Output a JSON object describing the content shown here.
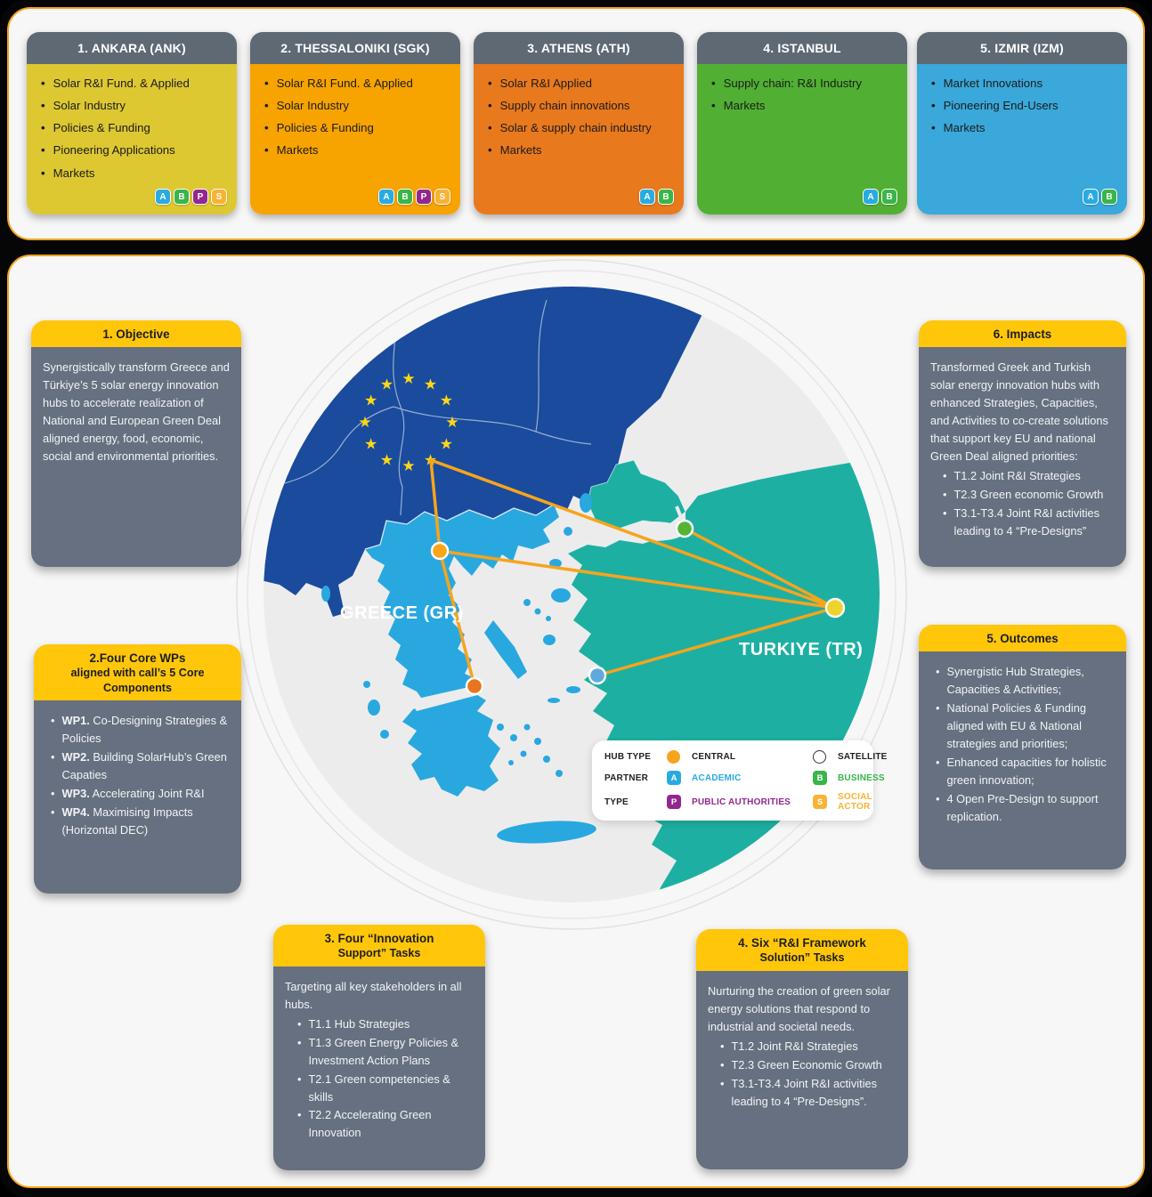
{
  "top_cards": [
    {
      "title": "1. ANKARA (ANK)",
      "color": "#ddc832",
      "items": [
        "Solar R&I Fund. & Applied",
        "Solar Industry",
        "Policies & Funding",
        "Pioneering Applications",
        "Markets"
      ],
      "badges": [
        "A",
        "B",
        "P",
        "S"
      ]
    },
    {
      "title": "2. THESSALONIKI (SGK)",
      "color": "#f7a300",
      "items": [
        "Solar R&I Fund. & Applied",
        "Solar Industry",
        "Policies & Funding",
        "Markets"
      ],
      "badges": [
        "A",
        "B",
        "P",
        "S"
      ]
    },
    {
      "title": "3. ATHENS (ATH)",
      "color": "#e8791d",
      "items": [
        "Solar R&I Applied",
        "Supply chain innovations",
        "Solar & supply chain industry",
        "Markets"
      ],
      "badges": [
        "A",
        "B"
      ]
    },
    {
      "title": "4. ISTANBUL",
      "color": "#51b033",
      "items": [
        "Supply chain: R&I Industry",
        "Markets"
      ],
      "badges": [
        "A",
        "B"
      ]
    },
    {
      "title": "5. IZMIR (IZM)",
      "color": "#3aa8da",
      "items": [
        "Market Innovations",
        "Pioneering End-Users",
        "Markets"
      ],
      "badges": [
        "A",
        "B"
      ]
    }
  ],
  "badge_colors": {
    "A": "#29abe2",
    "B": "#39b54a",
    "P": "#92278f",
    "S": "#f9b233"
  },
  "boxes": [
    {
      "id": "objective",
      "header": [
        "1. Objective"
      ],
      "paragraph": "Synergistically transform Greece and Türkiye’s 5 solar energy innovation hubs to accelerate realization of National and European Green Deal aligned energy, food, economic, social and environmental priorities.",
      "bullets": []
    },
    {
      "id": "core-wps",
      "header": [
        "2.Four Core WPs",
        "aligned with call’s 5 Core Components"
      ],
      "paragraph": "",
      "bullets": [
        {
          "bold": "WP1.",
          "text": " Co-Designing Strategies & Policies"
        },
        {
          "bold": "WP2.",
          "text": " Building SolarHub’s Green Capaties"
        },
        {
          "bold": "WP3.",
          "text": " Accelerating Joint R&I"
        },
        {
          "bold": "WP4.",
          "text": " Maximising Impacts (Horizontal DEC)"
        }
      ]
    },
    {
      "id": "innovation-support",
      "header": [
        "3. Four “Innovation",
        "Support” Tasks"
      ],
      "paragraph": "Targeting all key stakeholders in all hubs.",
      "bullets": [
        {
          "text": "T1.1 Hub Strategies"
        },
        {
          "text": "T1.3 Green Energy Policies & Investment Action Plans"
        },
        {
          "text": "T2.1 Green competencies & skills"
        },
        {
          "text": "T2.2 Accelerating Green Innovation"
        }
      ]
    },
    {
      "id": "framework-solution",
      "header": [
        "4. Six “R&I Framework",
        "Solution” Tasks"
      ],
      "paragraph": "Nurturing the creation of green solar energy solutions that respond to industrial and societal needs.",
      "bullets": [
        {
          "text": "T1.2 Joint R&I Strategies"
        },
        {
          "text": "T2.3 Green Economic Growth"
        },
        {
          "text": "T3.1-T3.4 Joint R&I activities leading to 4 “Pre-Designs”."
        }
      ]
    },
    {
      "id": "outcomes",
      "header": [
        "5. Outcomes"
      ],
      "paragraph": "",
      "bullets": [
        {
          "text": "Synergistic Hub Strategies, Capacities & Activities;"
        },
        {
          "text": "National Policies & Funding aligned with EU & National strategies and priorities;"
        },
        {
          "text": "Enhanced capacities for holistic green innovation;"
        },
        {
          "text": "4 Open Pre-Design to support replication."
        }
      ]
    },
    {
      "id": "impacts",
      "header": [
        "6. Impacts"
      ],
      "paragraph": "Transformed Greek and Turkish solar energy innovation hubs with enhanced Strategies, Capacities, and Activities to co-create solutions that support key EU and national Green Deal aligned priorities:",
      "bullets": [
        {
          "text": "T1.2 Joint R&I Strategies"
        },
        {
          "text": "T2.3 Green economic Growth"
        },
        {
          "text": "T3.1-T3.4 Joint R&I activities leading to 4 “Pre-Designs”"
        }
      ]
    }
  ],
  "map": {
    "labels": {
      "greece": "GREECE (GR)",
      "turkiye": "TURKIYE (TR)"
    },
    "region_colors": {
      "eu": "#1a4b9d",
      "greece": "#29a8e0",
      "turkiye": "#1db0a2",
      "sea": "#ececec",
      "stars": "#ffd617",
      "link": "#f7a41d"
    },
    "hubs": [
      {
        "id": "eu",
        "name": "EU",
        "type": "star-vertex",
        "color": "#ffd617"
      },
      {
        "id": "thessaloniki",
        "name": "Thessaloniki",
        "type": "central",
        "color": "#f9a51a"
      },
      {
        "id": "athens",
        "name": "Athens",
        "type": "central",
        "color": "#e8761c"
      },
      {
        "id": "istanbul",
        "name": "Istanbul",
        "type": "satellite",
        "color": "#54b335"
      },
      {
        "id": "izmir",
        "name": "Izmir",
        "type": "satellite",
        "color": "#5fa9dd"
      },
      {
        "id": "ankara",
        "name": "Ankara",
        "type": "central",
        "color": "#ecd42c"
      }
    ],
    "connections": [
      [
        "eu",
        "thessaloniki"
      ],
      [
        "eu",
        "ankara"
      ],
      [
        "thessaloniki",
        "ankara"
      ],
      [
        "thessaloniki",
        "athens"
      ],
      [
        "istanbul",
        "ankara"
      ],
      [
        "izmir",
        "ankara"
      ]
    ],
    "legend": {
      "rows": [
        {
          "label": "HUB TYPE",
          "items": [
            {
              "icon": "circle-filled",
              "text": "CENTRAL",
              "color": "#222222"
            },
            {
              "icon": "circle-hollow",
              "text": "SATELLITE",
              "color": "#222222"
            }
          ]
        },
        {
          "label": "PARTNER",
          "items": [
            {
              "icon": "badge",
              "letter": "A",
              "badge_color": "#29abe2",
              "text": "ACADEMIC",
              "color": "#29abe2"
            },
            {
              "icon": "badge",
              "letter": "B",
              "badge_color": "#39b54a",
              "text": "BUSINESS",
              "color": "#39b54a"
            }
          ]
        },
        {
          "label": "TYPE",
          "items": [
            {
              "icon": "badge",
              "letter": "P",
              "badge_color": "#92278f",
              "text": "PUBLIC AUTHORITIES",
              "color": "#92278f"
            },
            {
              "icon": "badge",
              "letter": "S",
              "badge_color": "#f9b233",
              "text": "SOCIAL ACTOR",
              "color": "#f9b233"
            }
          ]
        }
      ]
    }
  }
}
